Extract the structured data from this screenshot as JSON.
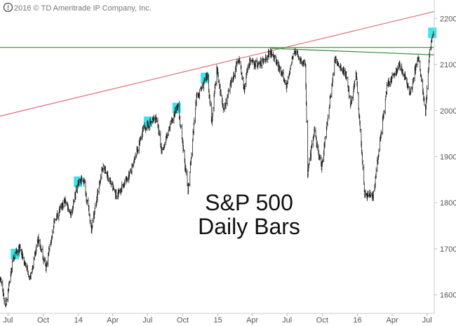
{
  "copyright": "2016 © TD Ameritrade IP Company, Inc.",
  "icon": "exclamation-circle-icon",
  "chart_data": {
    "type": "ohlc",
    "title_lines": [
      "S&P 500",
      "Daily Bars"
    ],
    "ylim": [
      1560,
      2240
    ],
    "y_ticks": [
      1600,
      1700,
      1800,
      1900,
      2000,
      2100,
      2200
    ],
    "x_range": [
      "2013-06-10",
      "2016-07-20"
    ],
    "x_ticks": [
      {
        "label": "Jul",
        "date": "2013-07-01"
      },
      {
        "label": "Oct",
        "date": "2013-10-01"
      },
      {
        "label": "14",
        "date": "2014-01-01"
      },
      {
        "label": "Apr",
        "date": "2014-04-01"
      },
      {
        "label": "Jul",
        "date": "2014-07-01"
      },
      {
        "label": "Oct",
        "date": "2014-10-01"
      },
      {
        "label": "15",
        "date": "2015-01-01"
      },
      {
        "label": "Apr",
        "date": "2015-04-01"
      },
      {
        "label": "Jul",
        "date": "2015-07-01"
      },
      {
        "label": "Oct",
        "date": "2015-10-01"
      },
      {
        "label": "16",
        "date": "2016-01-01"
      },
      {
        "label": "Apr",
        "date": "2016-04-01"
      },
      {
        "label": "Jul",
        "date": "2016-07-01"
      }
    ],
    "price_path": [
      [
        "2013-06-10",
        1640
      ],
      [
        "2013-06-24",
        1575
      ],
      [
        "2013-07-15",
        1680
      ],
      [
        "2013-08-01",
        1700
      ],
      [
        "2013-08-28",
        1635
      ],
      [
        "2013-09-18",
        1720
      ],
      [
        "2013-10-08",
        1660
      ],
      [
        "2013-11-01",
        1765
      ],
      [
        "2013-11-28",
        1805
      ],
      [
        "2013-12-13",
        1775
      ],
      [
        "2013-12-31",
        1845
      ],
      [
        "2014-01-15",
        1850
      ],
      [
        "2014-02-04",
        1745
      ],
      [
        "2014-03-06",
        1880
      ],
      [
        "2014-04-11",
        1815
      ],
      [
        "2014-05-20",
        1870
      ],
      [
        "2014-06-20",
        1960
      ],
      [
        "2014-07-24",
        1985
      ],
      [
        "2014-08-07",
        1910
      ],
      [
        "2014-09-18",
        2015
      ],
      [
        "2014-10-15",
        1825
      ],
      [
        "2014-11-05",
        2025
      ],
      [
        "2014-12-05",
        2075
      ],
      [
        "2014-12-16",
        1975
      ],
      [
        "2014-12-29",
        2090
      ],
      [
        "2015-01-15",
        2000
      ],
      [
        "2015-02-25",
        2115
      ],
      [
        "2015-03-10",
        2045
      ],
      [
        "2015-03-23",
        2105
      ],
      [
        "2015-04-20",
        2100
      ],
      [
        "2015-05-21",
        2130
      ],
      [
        "2015-06-29",
        2055
      ],
      [
        "2015-07-20",
        2130
      ],
      [
        "2015-08-18",
        2095
      ],
      [
        "2015-08-24",
        1865
      ],
      [
        "2015-09-10",
        1955
      ],
      [
        "2015-09-29",
        1875
      ],
      [
        "2015-11-03",
        2110
      ],
      [
        "2015-12-02",
        2080
      ],
      [
        "2015-12-14",
        2010
      ],
      [
        "2015-12-29",
        2080
      ],
      [
        "2016-01-20",
        1820
      ],
      [
        "2016-02-11",
        1815
      ],
      [
        "2016-03-18",
        2050
      ],
      [
        "2016-04-20",
        2100
      ],
      [
        "2016-05-19",
        2040
      ],
      [
        "2016-06-08",
        2120
      ],
      [
        "2016-06-27",
        1995
      ],
      [
        "2016-07-08",
        2130
      ],
      [
        "2016-07-15",
        2165
      ],
      [
        "2016-07-20",
        2170
      ]
    ],
    "series": [
      {
        "lines": [
          {
            "from": [
              "2013-06-10",
              1988
            ],
            "to": [
              "2016-07-20",
              2215
            ]
          }
        ],
        "color": "#e06b78"
      },
      {
        "lines": [
          {
            "from": [
              "2013-06-10",
              2137
            ],
            "to": [
              "2016-07-20",
              2137
            ]
          }
        ],
        "color": "#3a8a3a"
      },
      {
        "lines": [
          {
            "from": [
              "2015-05-21",
              2135
            ],
            "to": [
              "2016-07-20",
              2121
            ]
          }
        ],
        "color": "#3a8a3a"
      }
    ],
    "highlights": [
      {
        "date": "2013-07-19",
        "value": 1688
      },
      {
        "date": "2013-12-31",
        "value": 1845
      },
      {
        "date": "2014-07-02",
        "value": 1975
      },
      {
        "date": "2014-09-15",
        "value": 2005
      },
      {
        "date": "2014-11-28",
        "value": 2070
      },
      {
        "date": "2016-07-15",
        "value": 2168
      }
    ],
    "highlight_color": "#3de4ea",
    "bar_color": "#222222",
    "grid": false
  }
}
